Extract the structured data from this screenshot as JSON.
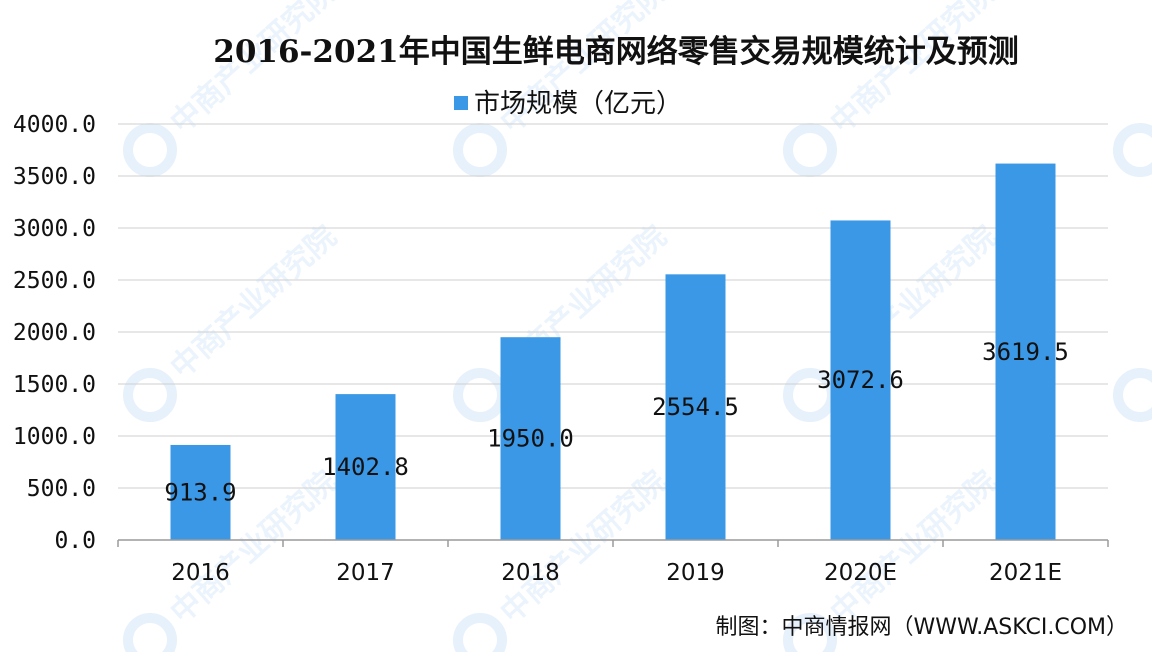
{
  "chart_data": {
    "type": "bar",
    "title": "2016-2021年中国生鲜电商网络零售交易规模统计及预测",
    "categories": [
      "2016",
      "2017",
      "2018",
      "2019",
      "2020E",
      "2021E"
    ],
    "series": [
      {
        "name": "市场规模（亿元）",
        "values": [
          913.9,
          1402.8,
          1950.0,
          2554.5,
          3072.6,
          3619.5
        ],
        "color": "#3b98e6"
      }
    ],
    "data_labels": [
      "913.9",
      "1402.8",
      "1950.0",
      "2554.5",
      "3072.6",
      "3619.5"
    ],
    "y_tick_labels": [
      "0.0",
      "500.0",
      "1000.0",
      "1500.0",
      "2000.0",
      "2500.0",
      "3000.0",
      "3500.0",
      "4000.0"
    ],
    "ylim": [
      0,
      4000
    ],
    "y_step": 500,
    "grid": true,
    "legend_position": "top-center"
  },
  "source_note": "制图：中商情报网（WWW.ASKCI.COM）",
  "watermark_text": "中商产业研究院"
}
